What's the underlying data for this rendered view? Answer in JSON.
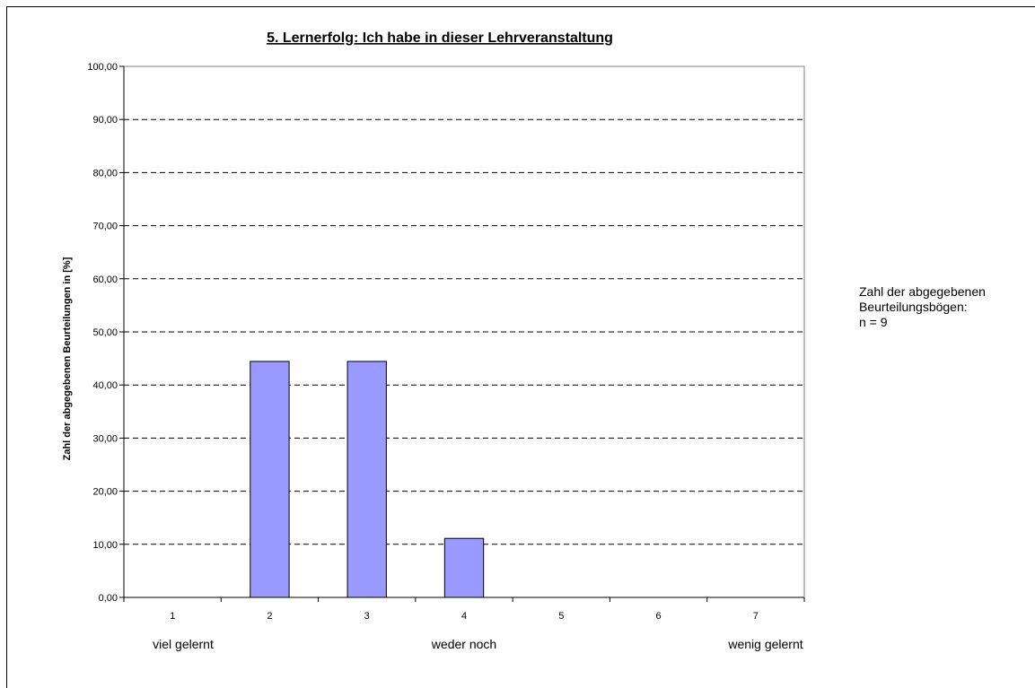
{
  "chart_data": {
    "type": "bar",
    "title": "5. Lernerfolg: Ich habe in dieser Lehrveranstaltung",
    "ylabel": "Zahl der abgegebenen Beurteilungen in [%]",
    "xlabel": "",
    "categories": [
      "1",
      "2",
      "3",
      "4",
      "5",
      "6",
      "7"
    ],
    "values": [
      0,
      44.44,
      44.44,
      11.11,
      0,
      0,
      0
    ],
    "ylim": [
      0,
      100
    ],
    "yticks": [
      0,
      10,
      20,
      30,
      40,
      50,
      60,
      70,
      80,
      90,
      100
    ],
    "ytick_labels": [
      "0,00",
      "10,00",
      "20,00",
      "30,00",
      "40,00",
      "50,00",
      "60,00",
      "70,00",
      "80,00",
      "90,00",
      "100,00"
    ],
    "grid": "horizontal dashed",
    "bar_color": "#9999ff",
    "bar_edge_color": "#000000",
    "scale_labels": {
      "left": "viel gelernt",
      "middle": "weder noch",
      "right": "wenig gelernt"
    }
  },
  "side_note": {
    "line1": "Zahl der abgegebenen",
    "line2": "Beurteilungsbögen:",
    "line3": "n = 9"
  }
}
